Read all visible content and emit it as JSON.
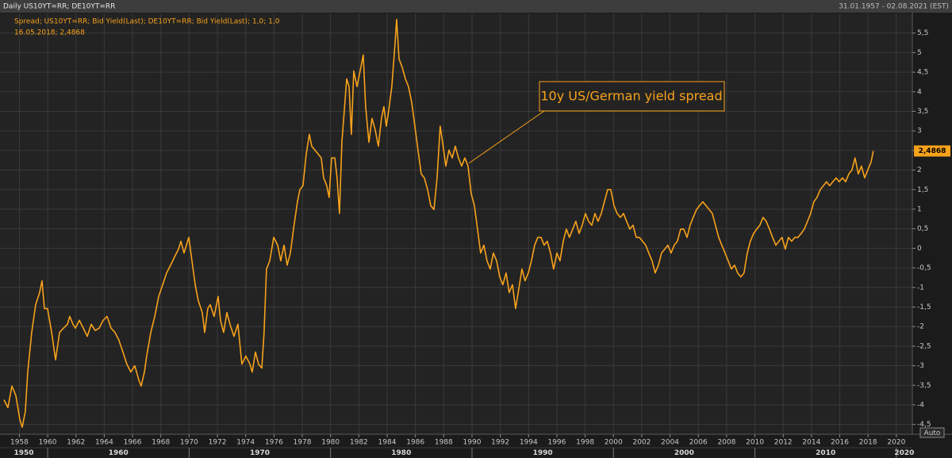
{
  "chart_data": {
    "type": "line",
    "title": "Daily US10YT=RR; DE10YT=RR",
    "date_range": "31.01.1957 - 02.08.2021 (EST)",
    "cursor_label": "16.05.2018; 2,4868",
    "last_value_label": "2,4868",
    "annotation": "10y US/German yield spread",
    "auto_label": "Auto",
    "xlim": [
      1956.63,
      2021.13
    ],
    "ylim": [
      -4.75,
      6
    ],
    "grid": true,
    "xticks": [
      1958,
      1960,
      1962,
      1964,
      1966,
      1968,
      1970,
      1972,
      1974,
      1976,
      1978,
      1980,
      1982,
      1984,
      1986,
      1988,
      1990,
      1992,
      1994,
      1996,
      1998,
      2000,
      2002,
      2004,
      2006,
      2008,
      2010,
      2012,
      2014,
      2016,
      2018,
      2020
    ],
    "decade_ticks": [
      1950,
      1960,
      1970,
      1980,
      1990,
      2000,
      2010,
      2020
    ],
    "yticks": [
      {
        "value": -4.5,
        "label": "-4,5"
      },
      -4,
      {
        "value": -3.5,
        "label": "-3,5"
      },
      -3,
      {
        "value": -2.5,
        "label": "-2,5"
      },
      -2,
      {
        "value": -1.5,
        "label": "-1,5"
      },
      -1,
      {
        "value": -0.5,
        "label": "-0,5"
      },
      0,
      {
        "value": 0.5,
        "label": "0,5"
      },
      1,
      {
        "value": 1.5,
        "label": "1,5"
      },
      2,
      {
        "value": 2.5,
        "label": "2,5"
      },
      3,
      {
        "value": 3.5,
        "label": "3,5"
      },
      4,
      {
        "value": 4.5,
        "label": "4,5"
      },
      5,
      {
        "value": 5.5,
        "label": "5,5"
      }
    ],
    "x": [
      1956.91,
      1957.19,
      1957.47,
      1957.75,
      1958.03,
      1958.2,
      1958.42,
      1958.59,
      1958.87,
      1959.15,
      1959.43,
      1959.6,
      1959.77,
      1959.99,
      1960.28,
      1960.56,
      1960.84,
      1961.12,
      1961.4,
      1961.56,
      1961.79,
      1961.96,
      1962.24,
      1962.52,
      1962.8,
      1963.08,
      1963.36,
      1963.64,
      1963.92,
      1964.2,
      1964.48,
      1964.76,
      1965.04,
      1965.32,
      1965.6,
      1965.88,
      1966.16,
      1966.44,
      1966.61,
      1966.84,
      1967.0,
      1967.29,
      1967.57,
      1967.85,
      1968.13,
      1968.41,
      1968.69,
      1968.97,
      1969.25,
      1969.42,
      1969.64,
      1969.81,
      1969.98,
      1970.2,
      1970.43,
      1970.65,
      1970.93,
      1971.1,
      1971.32,
      1971.49,
      1971.77,
      1972.05,
      1972.22,
      1972.44,
      1972.67,
      1972.89,
      1973.17,
      1973.45,
      1973.73,
      1974.01,
      1974.3,
      1974.46,
      1974.69,
      1974.91,
      1975.14,
      1975.3,
      1975.47,
      1975.7,
      1975.98,
      1976.26,
      1976.48,
      1976.71,
      1976.93,
      1977.16,
      1977.38,
      1977.66,
      1977.83,
      1978.05,
      1978.28,
      1978.5,
      1978.67,
      1978.89,
      1979.12,
      1979.34,
      1979.51,
      1979.73,
      1979.9,
      1980.07,
      1980.3,
      1980.46,
      1980.63,
      1980.8,
      1980.97,
      1981.14,
      1981.31,
      1981.47,
      1981.64,
      1981.87,
      1982.09,
      1982.31,
      1982.48,
      1982.71,
      1982.93,
      1983.16,
      1983.38,
      1983.6,
      1983.77,
      1983.94,
      1984.11,
      1984.33,
      1984.56,
      1984.67,
      1984.84,
      1985.06,
      1985.29,
      1985.51,
      1985.74,
      1985.96,
      1986.18,
      1986.41,
      1986.63,
      1986.86,
      1987.08,
      1987.31,
      1987.53,
      1987.75,
      1987.92,
      1988.15,
      1988.37,
      1988.6,
      1988.82,
      1989.04,
      1989.27,
      1989.49,
      1989.72,
      1989.94,
      1990.17,
      1990.39,
      1990.61,
      1990.84,
      1991.06,
      1991.29,
      1991.51,
      1991.74,
      1991.96,
      1992.18,
      1992.41,
      1992.63,
      1992.86,
      1993.08,
      1993.31,
      1993.53,
      1993.75,
      1993.98,
      1994.2,
      1994.43,
      1994.65,
      1994.88,
      1995.1,
      1995.32,
      1995.55,
      1995.77,
      1996.0,
      1996.22,
      1996.45,
      1996.67,
      1996.89,
      1997.12,
      1997.34,
      1997.57,
      1997.79,
      1998.02,
      1998.24,
      1998.47,
      1998.69,
      1998.91,
      1999.14,
      1999.36,
      1999.59,
      1999.81,
      2000.04,
      2000.26,
      2000.49,
      2000.71,
      2000.93,
      2001.16,
      2001.38,
      2001.61,
      2001.83,
      2002.06,
      2002.28,
      2002.5,
      2002.73,
      2002.95,
      2003.18,
      2003.4,
      2003.63,
      2003.85,
      2004.07,
      2004.3,
      2004.52,
      2004.75,
      2004.97,
      2005.2,
      2005.42,
      2005.64,
      2005.87,
      2006.09,
      2006.32,
      2006.54,
      2006.77,
      2006.99,
      2007.21,
      2007.44,
      2007.66,
      2007.89,
      2008.11,
      2008.34,
      2008.56,
      2008.78,
      2009.01,
      2009.23,
      2009.46,
      2009.68,
      2009.91,
      2010.13,
      2010.35,
      2010.58,
      2010.8,
      2011.03,
      2011.25,
      2011.48,
      2011.7,
      2011.92,
      2012.15,
      2012.37,
      2012.6,
      2012.82,
      2013.05,
      2013.27,
      2013.49,
      2013.72,
      2013.94,
      2014.17,
      2014.39,
      2014.62,
      2014.84,
      2015.06,
      2015.29,
      2015.51,
      2015.74,
      2015.96,
      2016.19,
      2016.41,
      2016.64,
      2016.86,
      2017.08,
      2017.31,
      2017.53,
      2017.76,
      2017.98,
      2018.21,
      2018.37
    ],
    "series": [
      {
        "name": "Spread; US10YT=RR; Bid Yield(Last); DE10YT=RR; Bid Yield(Last);  1,0; 1,0",
        "color": "#f7a21b",
        "values": [
          -3.87,
          -4.07,
          -3.52,
          -3.76,
          -4.37,
          -4.57,
          -4.17,
          -3.16,
          -2.15,
          -1.44,
          -1.13,
          -0.83,
          -1.54,
          -1.54,
          -2.15,
          -2.85,
          -2.15,
          -2.04,
          -1.94,
          -1.74,
          -1.94,
          -2.04,
          -1.84,
          -2.04,
          -2.25,
          -1.94,
          -2.1,
          -2.04,
          -1.84,
          -1.74,
          -2.04,
          -2.15,
          -2.35,
          -2.65,
          -2.96,
          -3.16,
          -3.0,
          -3.36,
          -3.52,
          -3.16,
          -2.75,
          -2.15,
          -1.74,
          -1.23,
          -0.93,
          -0.63,
          -0.43,
          -0.22,
          -0.02,
          0.18,
          -0.12,
          0.08,
          0.28,
          -0.32,
          -0.93,
          -1.34,
          -1.64,
          -2.15,
          -1.54,
          -1.44,
          -1.74,
          -1.23,
          -1.84,
          -2.15,
          -1.64,
          -1.94,
          -2.25,
          -1.94,
          -2.96,
          -2.75,
          -2.96,
          -3.16,
          -2.65,
          -2.96,
          -3.06,
          -2.15,
          -0.53,
          -0.32,
          0.28,
          0.08,
          -0.32,
          0.08,
          -0.43,
          -0.12,
          0.49,
          1.19,
          1.5,
          1.6,
          2.41,
          2.91,
          2.61,
          2.51,
          2.41,
          2.31,
          1.8,
          1.6,
          1.3,
          2.31,
          2.31,
          1.8,
          0.89,
          2.71,
          3.52,
          4.33,
          4.13,
          2.91,
          4.53,
          4.13,
          4.53,
          4.94,
          3.62,
          2.71,
          3.32,
          3.02,
          2.61,
          3.32,
          3.62,
          3.12,
          3.52,
          4.13,
          5.24,
          5.85,
          4.84,
          4.63,
          4.33,
          4.13,
          3.72,
          3.12,
          2.51,
          1.9,
          1.8,
          1.5,
          1.09,
          0.99,
          1.8,
          3.12,
          2.71,
          2.1,
          2.51,
          2.31,
          2.61,
          2.31,
          2.1,
          2.31,
          2.1,
          1.4,
          1.09,
          0.49,
          -0.12,
          0.08,
          -0.32,
          -0.53,
          -0.12,
          -0.32,
          -0.73,
          -0.93,
          -0.63,
          -1.13,
          -0.93,
          -1.54,
          -1.03,
          -0.53,
          -0.83,
          -0.63,
          -0.32,
          0.08,
          0.28,
          0.28,
          0.08,
          0.18,
          -0.12,
          -0.53,
          -0.12,
          -0.32,
          0.18,
          0.49,
          0.28,
          0.49,
          0.69,
          0.38,
          0.59,
          0.89,
          0.69,
          0.59,
          0.89,
          0.69,
          0.89,
          1.19,
          1.5,
          1.5,
          1.09,
          0.89,
          0.79,
          0.89,
          0.69,
          0.49,
          0.59,
          0.28,
          0.28,
          0.18,
          0.08,
          -0.12,
          -0.32,
          -0.63,
          -0.43,
          -0.12,
          -0.02,
          0.08,
          -0.12,
          0.08,
          0.18,
          0.49,
          0.49,
          0.28,
          0.59,
          0.79,
          0.99,
          1.09,
          1.19,
          1.09,
          0.99,
          0.89,
          0.59,
          0.28,
          0.08,
          -0.12,
          -0.32,
          -0.53,
          -0.43,
          -0.63,
          -0.73,
          -0.63,
          -0.12,
          0.18,
          0.38,
          0.49,
          0.59,
          0.79,
          0.69,
          0.49,
          0.28,
          0.08,
          0.18,
          0.28,
          -0.02,
          0.28,
          0.18,
          0.28,
          0.28,
          0.38,
          0.49,
          0.69,
          0.89,
          1.19,
          1.3,
          1.5,
          1.6,
          1.7,
          1.6,
          1.7,
          1.8,
          1.7,
          1.8,
          1.7,
          1.9,
          2.0,
          2.31,
          1.9,
          2.1,
          1.8,
          2.0,
          2.2,
          2.4868
        ]
      }
    ]
  }
}
